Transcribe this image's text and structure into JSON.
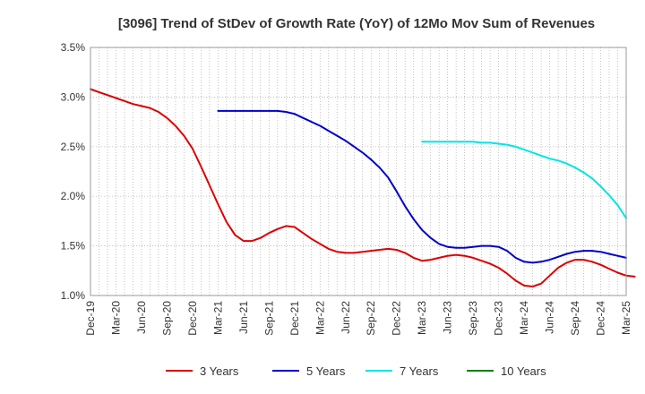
{
  "chart_data": {
    "type": "line",
    "title": "[3096]  Trend of StDev of Growth Rate (YoY) of 12Mo Mov Sum of Revenues",
    "xlabel": "",
    "ylabel": "",
    "x_tick_labels": [
      "Dec-19",
      "Mar-20",
      "Jun-20",
      "Sep-20",
      "Dec-20",
      "Mar-21",
      "Jun-21",
      "Sep-21",
      "Dec-21",
      "Mar-22",
      "Jun-22",
      "Sep-22",
      "Dec-22",
      "Mar-23",
      "Jun-23",
      "Sep-23",
      "Dec-23",
      "Mar-24",
      "Jun-24",
      "Sep-24",
      "Dec-24",
      "Mar-25"
    ],
    "y_tick_labels": [
      "1.0%",
      "1.5%",
      "2.0%",
      "2.5%",
      "3.0%",
      "3.5%"
    ],
    "y_ticks": [
      1.0,
      1.5,
      2.0,
      2.5,
      3.0,
      3.5
    ],
    "ylim": [
      1.0,
      3.5
    ],
    "grid": true,
    "legend_position": "bottom",
    "series": [
      {
        "name": "3 Years",
        "color": "#dd0000",
        "start_month": 0,
        "values": [
          3.08,
          3.05,
          3.02,
          2.99,
          2.96,
          2.93,
          2.91,
          2.89,
          2.85,
          2.79,
          2.71,
          2.61,
          2.48,
          2.3,
          2.11,
          1.92,
          1.74,
          1.61,
          1.55,
          1.55,
          1.58,
          1.63,
          1.67,
          1.7,
          1.69,
          1.63,
          1.57,
          1.52,
          1.47,
          1.44,
          1.43,
          1.43,
          1.44,
          1.45,
          1.46,
          1.47,
          1.46,
          1.43,
          1.38,
          1.35,
          1.36,
          1.38,
          1.4,
          1.41,
          1.4,
          1.38,
          1.35,
          1.32,
          1.28,
          1.22,
          1.15,
          1.1,
          1.09,
          1.12,
          1.2,
          1.28,
          1.33,
          1.36,
          1.36,
          1.34,
          1.31,
          1.27,
          1.23,
          1.2,
          1.19
        ]
      },
      {
        "name": "5 Years",
        "color": "#0000cc",
        "start_month": 15,
        "values": [
          2.86,
          2.86,
          2.86,
          2.86,
          2.86,
          2.86,
          2.86,
          2.86,
          2.85,
          2.83,
          2.79,
          2.75,
          2.71,
          2.66,
          2.61,
          2.56,
          2.5,
          2.44,
          2.37,
          2.29,
          2.19,
          2.05,
          1.9,
          1.77,
          1.66,
          1.58,
          1.52,
          1.49,
          1.48,
          1.48,
          1.49,
          1.5,
          1.5,
          1.49,
          1.45,
          1.38,
          1.34,
          1.33,
          1.34,
          1.36,
          1.39,
          1.42,
          1.44,
          1.45,
          1.45,
          1.44,
          1.42,
          1.4,
          1.38
        ]
      },
      {
        "name": "7 Years",
        "color": "#00e5e5",
        "start_month": 39,
        "values": [
          2.55,
          2.55,
          2.55,
          2.55,
          2.55,
          2.55,
          2.55,
          2.54,
          2.54,
          2.53,
          2.52,
          2.5,
          2.47,
          2.44,
          2.41,
          2.38,
          2.36,
          2.33,
          2.29,
          2.24,
          2.18,
          2.1,
          2.01,
          1.91,
          1.78
        ]
      },
      {
        "name": "10 Years",
        "color": "#008000",
        "start_month": 0,
        "values": []
      }
    ]
  }
}
